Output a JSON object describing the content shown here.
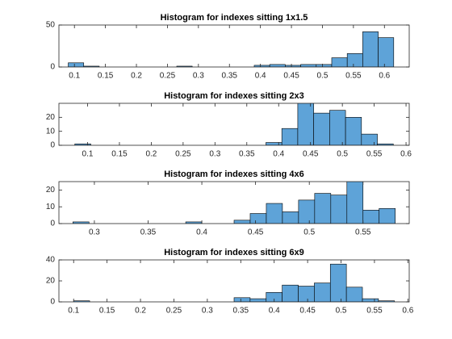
{
  "chart_data": [
    {
      "type": "histogram",
      "title": "Histogram for indexes sitting 1x1.5",
      "color": "#5ea3d8",
      "bins": [
        0.09,
        0.115,
        0.14,
        0.165,
        0.19,
        0.215,
        0.24,
        0.265,
        0.29,
        0.315,
        0.34,
        0.365,
        0.39,
        0.415,
        0.44,
        0.465,
        0.49,
        0.515,
        0.54,
        0.565,
        0.59,
        0.615
      ],
      "counts": [
        5,
        1,
        0,
        0,
        0,
        0,
        0,
        1,
        0,
        0,
        0,
        0,
        2,
        3,
        2,
        3,
        3,
        11,
        16,
        42,
        35
      ],
      "xlim": [
        0.075,
        0.64
      ],
      "xticks": [
        0.1,
        0.15,
        0.2,
        0.25,
        0.3,
        0.35,
        0.4,
        0.45,
        0.5,
        0.55,
        0.6
      ],
      "ylim": [
        0,
        50
      ],
      "yticks": [
        0,
        50
      ]
    },
    {
      "type": "histogram",
      "title": "Histogram for indexes sitting 2x3",
      "color": "#5ea3d8",
      "bins": [
        0.08,
        0.105,
        0.13,
        0.155,
        0.18,
        0.205,
        0.23,
        0.255,
        0.28,
        0.305,
        0.33,
        0.355,
        0.38,
        0.405,
        0.43,
        0.455,
        0.48,
        0.505,
        0.53,
        0.555,
        0.58
      ],
      "counts": [
        1,
        0,
        0,
        0,
        0,
        0,
        0,
        0,
        0,
        0,
        0,
        0,
        2,
        12,
        35,
        23,
        25,
        20,
        8,
        1
      ],
      "xlim": [
        0.055,
        0.605
      ],
      "xticks": [
        0.1,
        0.15,
        0.2,
        0.25,
        0.3,
        0.35,
        0.4,
        0.45,
        0.5,
        0.55,
        0.6
      ],
      "ylim": [
        0,
        30
      ],
      "yticks": [
        0,
        10,
        20
      ]
    },
    {
      "type": "histogram",
      "title": "Histogram for indexes sitting 4x6",
      "color": "#5ea3d8",
      "bins": [
        0.28,
        0.295,
        0.31,
        0.325,
        0.34,
        0.355,
        0.37,
        0.385,
        0.4,
        0.415,
        0.43,
        0.445,
        0.46,
        0.475,
        0.49,
        0.505,
        0.52,
        0.535,
        0.55,
        0.565,
        0.58
      ],
      "counts": [
        1,
        0,
        0,
        0,
        0,
        0,
        0,
        1,
        0,
        0,
        2,
        6,
        12,
        7,
        14,
        18,
        17,
        26,
        8,
        9
      ],
      "xlim": [
        0.267,
        0.593
      ],
      "xticks": [
        0.3,
        0.35,
        0.4,
        0.45,
        0.5,
        0.55
      ],
      "ylim": [
        0,
        25
      ],
      "yticks": [
        0,
        10,
        20
      ]
    },
    {
      "type": "histogram",
      "title": "Histogram for indexes sitting 6x9",
      "color": "#5ea3d8",
      "bins": [
        0.1,
        0.124,
        0.148,
        0.172,
        0.196,
        0.22,
        0.244,
        0.268,
        0.292,
        0.316,
        0.34,
        0.364,
        0.388,
        0.412,
        0.436,
        0.46,
        0.484,
        0.508,
        0.532,
        0.556,
        0.58
      ],
      "counts": [
        1,
        0,
        0,
        0,
        0,
        0,
        0,
        0,
        0,
        0,
        4,
        3,
        9,
        16,
        15,
        18,
        36,
        14,
        3,
        1
      ],
      "xlim": [
        0.078,
        0.602
      ],
      "xticks": [
        0.1,
        0.15,
        0.2,
        0.25,
        0.3,
        0.35,
        0.4,
        0.45,
        0.5,
        0.55,
        0.6
      ],
      "ylim": [
        0,
        40
      ],
      "yticks": [
        0,
        20,
        40
      ]
    }
  ]
}
